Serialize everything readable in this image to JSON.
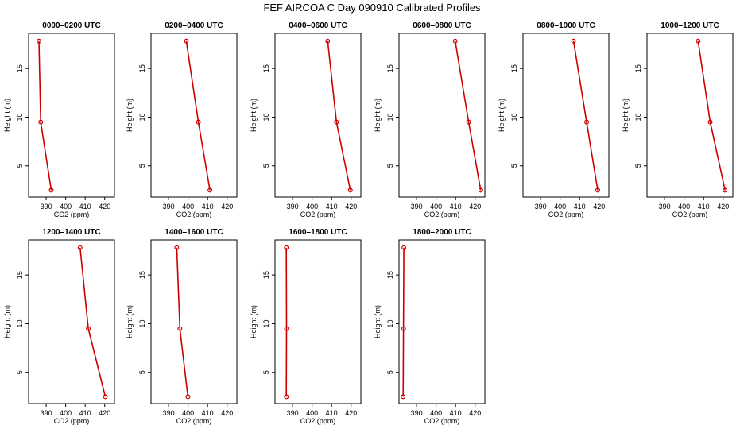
{
  "title": "FEF AIRCOA C  Day 090910  Calibrated Profiles",
  "colors": {
    "series": "#cc0000",
    "axis": "#000000"
  },
  "chart_data": [
    {
      "type": "line",
      "title": "0000–0200 UTC",
      "xlabel": "CO2 (ppm)",
      "ylabel": "Height (m)",
      "xlim": [
        381,
        425
      ],
      "ylim": [
        1.8,
        18.6
      ],
      "xticks": [
        390,
        400,
        410,
        420
      ],
      "yticks": [
        5,
        10,
        15
      ],
      "series": [
        {
          "name": "profile",
          "x": [
            392.6,
            387.2,
            386.3
          ],
          "y": [
            2.5,
            9.5,
            17.8
          ]
        }
      ]
    },
    {
      "type": "line",
      "title": "0200–0400 UTC",
      "xlabel": "CO2 (ppm)",
      "ylabel": "Height (m)",
      "xlim": [
        381,
        425
      ],
      "ylim": [
        1.8,
        18.6
      ],
      "xticks": [
        390,
        400,
        410,
        420
      ],
      "yticks": [
        5,
        10,
        15
      ],
      "series": [
        {
          "name": "profile",
          "x": [
            411.2,
            405.3,
            399.1
          ],
          "y": [
            2.5,
            9.5,
            17.8
          ]
        }
      ]
    },
    {
      "type": "line",
      "title": "0400–0600 UTC",
      "xlabel": "CO2 (ppm)",
      "ylabel": "Height (m)",
      "xlim": [
        381,
        425
      ],
      "ylim": [
        1.8,
        18.6
      ],
      "xticks": [
        390,
        400,
        410,
        420
      ],
      "yticks": [
        5,
        10,
        15
      ],
      "series": [
        {
          "name": "profile",
          "x": [
            419.6,
            412.5,
            408.0
          ],
          "y": [
            2.5,
            9.5,
            17.8
          ]
        }
      ]
    },
    {
      "type": "line",
      "title": "0600–0800 UTC",
      "xlabel": "CO2 (ppm)",
      "ylabel": "Height (m)",
      "xlim": [
        381,
        425
      ],
      "ylim": [
        1.8,
        18.6
      ],
      "xticks": [
        390,
        400,
        410,
        420
      ],
      "yticks": [
        5,
        10,
        15
      ],
      "series": [
        {
          "name": "profile",
          "x": [
            422.9,
            416.7,
            409.8
          ],
          "y": [
            2.5,
            9.5,
            17.8
          ]
        }
      ]
    },
    {
      "type": "line",
      "title": "0800–1000 UTC",
      "xlabel": "CO2 (ppm)",
      "ylabel": "Height (m)",
      "xlim": [
        381,
        425
      ],
      "ylim": [
        1.8,
        18.6
      ],
      "xticks": [
        390,
        400,
        410,
        420
      ],
      "yticks": [
        5,
        10,
        15
      ],
      "series": [
        {
          "name": "profile",
          "x": [
            419.3,
            413.6,
            406.9
          ],
          "y": [
            2.5,
            9.5,
            17.8
          ]
        }
      ]
    },
    {
      "type": "line",
      "title": "1000–1200 UTC",
      "xlabel": "CO2 (ppm)",
      "ylabel": "Height (m)",
      "xlim": [
        381,
        425
      ],
      "ylim": [
        1.8,
        18.6
      ],
      "xticks": [
        390,
        400,
        410,
        420
      ],
      "yticks": [
        5,
        10,
        15
      ],
      "series": [
        {
          "name": "profile",
          "x": [
            421.0,
            413.4,
            407.2
          ],
          "y": [
            2.5,
            9.5,
            17.8
          ]
        }
      ]
    },
    {
      "type": "line",
      "title": "1200–1400 UTC",
      "xlabel": "CO2 (ppm)",
      "ylabel": "Height (m)",
      "xlim": [
        381,
        425
      ],
      "ylim": [
        1.8,
        18.6
      ],
      "xticks": [
        390,
        400,
        410,
        420
      ],
      "yticks": [
        5,
        10,
        15
      ],
      "series": [
        {
          "name": "profile",
          "x": [
            420.3,
            411.6,
            407.4
          ],
          "y": [
            2.5,
            9.5,
            17.8
          ]
        }
      ]
    },
    {
      "type": "line",
      "title": "1400–1600 UTC",
      "xlabel": "CO2 (ppm)",
      "ylabel": "Height (m)",
      "xlim": [
        381,
        425
      ],
      "ylim": [
        1.8,
        18.6
      ],
      "xticks": [
        390,
        400,
        410,
        420
      ],
      "yticks": [
        5,
        10,
        15
      ],
      "series": [
        {
          "name": "profile",
          "x": [
            399.9,
            395.8,
            394.2
          ],
          "y": [
            2.5,
            9.5,
            17.8
          ]
        }
      ]
    },
    {
      "type": "line",
      "title": "1600–1800 UTC",
      "xlabel": "CO2 (ppm)",
      "ylabel": "Height (m)",
      "xlim": [
        381,
        425
      ],
      "ylim": [
        1.8,
        18.6
      ],
      "xticks": [
        390,
        400,
        410,
        420
      ],
      "yticks": [
        5,
        10,
        15
      ],
      "series": [
        {
          "name": "profile",
          "x": [
            386.8,
            386.9,
            386.8
          ],
          "y": [
            2.5,
            9.5,
            17.8
          ]
        }
      ]
    },
    {
      "type": "line",
      "title": "1800–2000 UTC",
      "xlabel": "CO2 (ppm)",
      "ylabel": "Height (m)",
      "xlim": [
        381,
        425
      ],
      "ylim": [
        1.8,
        18.6
      ],
      "xticks": [
        390,
        400,
        410,
        420
      ],
      "yticks": [
        5,
        10,
        15
      ],
      "series": [
        {
          "name": "profile",
          "x": [
            383.1,
            383.3,
            383.5
          ],
          "y": [
            2.5,
            9.5,
            17.8
          ]
        }
      ]
    }
  ]
}
